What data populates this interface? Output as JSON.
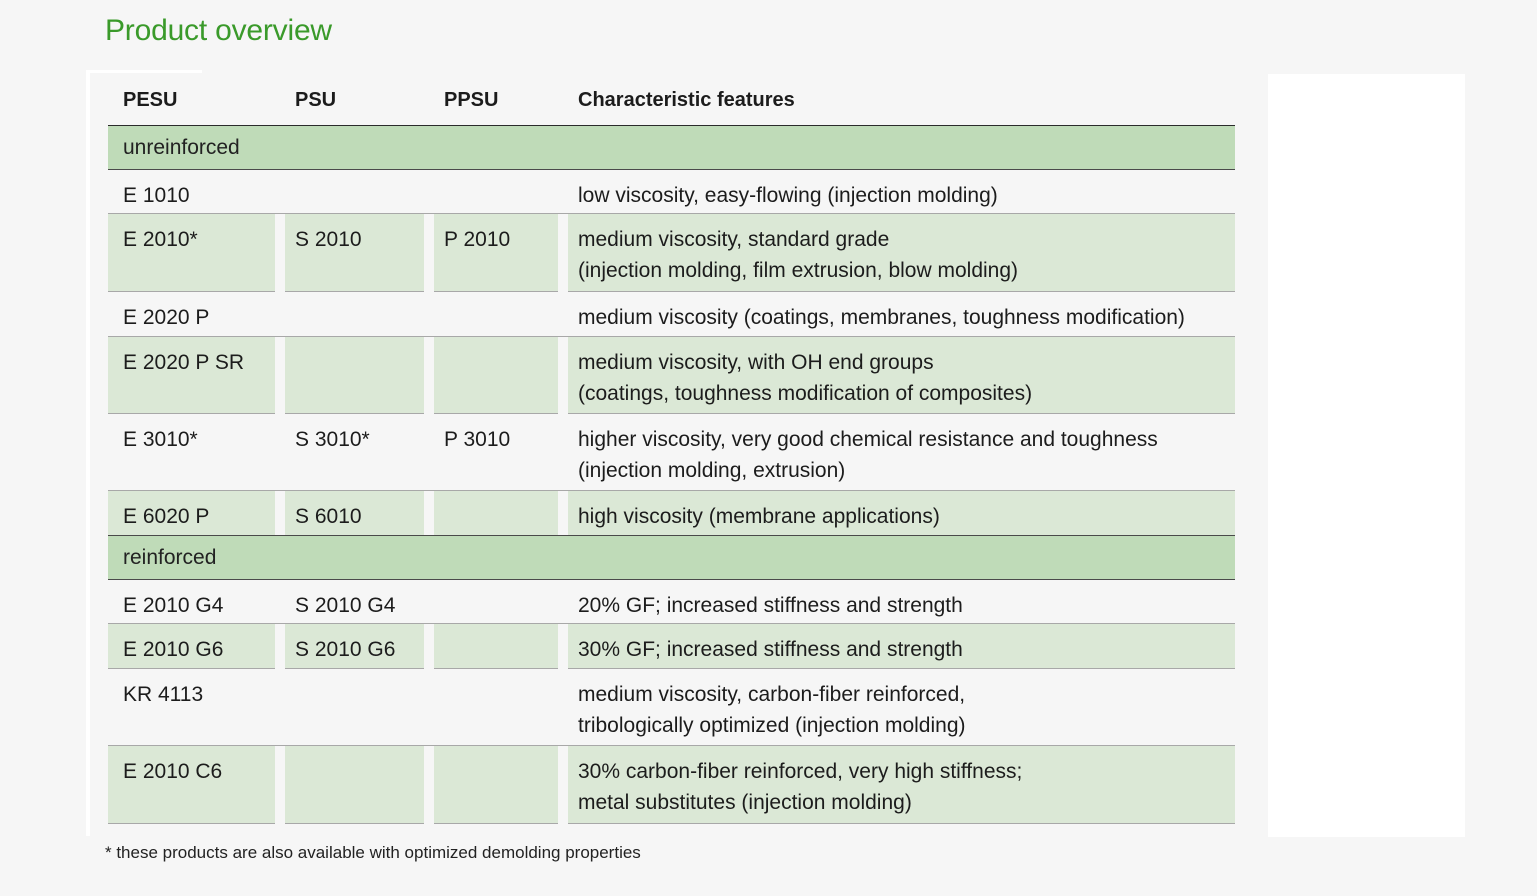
{
  "title": "Product overview",
  "header": {
    "pesu": "PESU",
    "psu": "PSU",
    "ppsu": "PPSU",
    "features": "Characteristic features"
  },
  "sections": [
    {
      "label": "unreinforced",
      "rows": [
        {
          "pesu": "E 1010",
          "psu": "",
          "ppsu": "",
          "features": "low viscosity, easy-flowing (injection molding)"
        },
        {
          "pesu": "E 2010*",
          "psu": "S 2010",
          "ppsu": "P 2010",
          "features": "medium viscosity, standard grade\n(injection molding, film extrusion, blow molding)"
        },
        {
          "pesu": "E 2020 P",
          "psu": "",
          "ppsu": "",
          "features": "medium viscosity (coatings, membranes, toughness modification)"
        },
        {
          "pesu": "E 2020 P SR",
          "psu": "",
          "ppsu": "",
          "features": "medium viscosity, with OH end groups\n(coatings, toughness modification of composites)"
        },
        {
          "pesu": "E 3010*",
          "psu": "S 3010*",
          "ppsu": "P 3010",
          "features": "higher viscosity, very good chemical resistance and toughness\n(injection molding, extrusion)"
        },
        {
          "pesu": "E 6020 P",
          "psu": "S 6010",
          "ppsu": "",
          "features": "high viscosity (membrane applications)"
        }
      ]
    },
    {
      "label": "reinforced",
      "rows": [
        {
          "pesu": "E 2010 G4",
          "psu": "S 2010 G4",
          "ppsu": "",
          "features": "20% GF; increased stiffness and strength"
        },
        {
          "pesu": "E 2010 G6",
          "psu": "S 2010 G6",
          "ppsu": "",
          "features": "30% GF; increased stiffness and strength"
        },
        {
          "pesu": "KR 4113",
          "psu": "",
          "ppsu": "",
          "features": "medium viscosity, carbon-fiber reinforced,\ntribologically optimized (injection molding)"
        },
        {
          "pesu": "E 2010 C6",
          "psu": "",
          "ppsu": "",
          "features": "30% carbon-fiber reinforced, very high stiffness;\nmetal substitutes (injection molding)"
        }
      ]
    }
  ],
  "footnote": "* these products are also available with optimized demolding properties"
}
